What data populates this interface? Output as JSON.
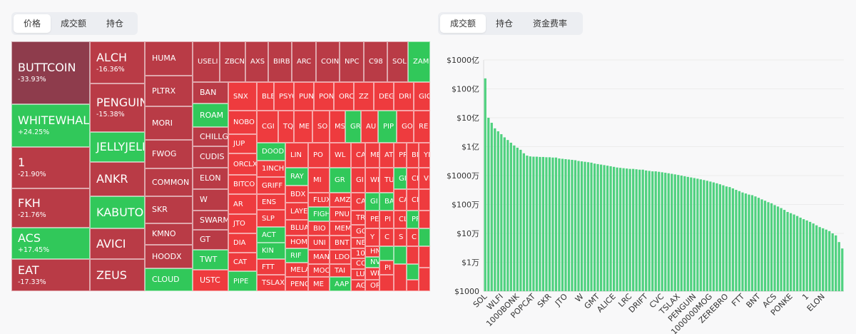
{
  "left_tabs": [
    "价格",
    "成交额",
    "持仓"
  ],
  "right_tabs": [
    "成交额",
    "持仓",
    "资金费率"
  ],
  "treemap": {
    "tiles": [
      {
        "name": "BUTTCOIN",
        "change": "-33.93%",
        "color": "#8e3c4c"
      },
      {
        "name": "WHITEWHALE",
        "change": "+24.25%",
        "color": "#31c85a"
      },
      {
        "name": "1",
        "change": "-21.90%",
        "color": "#b93b46"
      },
      {
        "name": "FKH",
        "change": "-21.76%",
        "color": "#b93b46"
      },
      {
        "name": "ACS",
        "change": "+17.45%",
        "color": "#31c85a"
      },
      {
        "name": "EAT",
        "change": "-17.33%",
        "color": "#b93b46"
      },
      {
        "name": "ALCH",
        "change": "-16.36%",
        "color": "#b93b46"
      },
      {
        "name": "PENGUIN",
        "change": "-15.38%",
        "color": "#b93b46"
      },
      {
        "name": "JELLYJELLY",
        "color": "#31c85a"
      },
      {
        "name": "ANKR",
        "color": "#b93b46"
      },
      {
        "name": "KABUTO",
        "color": "#31c85a"
      },
      {
        "name": "AVICI",
        "color": "#b93b46"
      },
      {
        "name": "ZEUS",
        "color": "#b93b46"
      },
      {
        "name": "HUMA",
        "color": "#b93b46"
      },
      {
        "name": "PLTRX",
        "color": "#b93b46"
      },
      {
        "name": "MORI",
        "color": "#b93b46"
      },
      {
        "name": "FWOG",
        "color": "#b93b46"
      },
      {
        "name": "COMMON",
        "color": "#b93b46"
      },
      {
        "name": "SKR",
        "color": "#b93b46"
      },
      {
        "name": "KMNO",
        "color": "#b93b46"
      },
      {
        "name": "HOODX",
        "color": "#b93b46"
      },
      {
        "name": "CLOUD",
        "color": "#31c85a"
      },
      {
        "name": "USELI",
        "color": "#b93b46"
      },
      {
        "name": "ZBCN",
        "color": "#b93b46"
      },
      {
        "name": "AXS",
        "color": "#b93b46"
      },
      {
        "name": "BIRB",
        "color": "#b93b46"
      },
      {
        "name": "ARC",
        "color": "#b93b46"
      },
      {
        "name": "COIN",
        "color": "#b93b46"
      },
      {
        "name": "NPC",
        "color": "#b93b46"
      },
      {
        "name": "C98",
        "color": "#b93b46"
      },
      {
        "name": "SOL",
        "color": "#b93b46"
      },
      {
        "name": "ZAM",
        "color": "#31c85a"
      },
      {
        "name": "BAN",
        "color": "#b93b46"
      },
      {
        "name": "ROAM",
        "color": "#31c85a"
      },
      {
        "name": "CHILLGU",
        "color": "#b93b46"
      },
      {
        "name": "CUDIS",
        "color": "#b93b46"
      },
      {
        "name": "ELON",
        "color": "#b93b46"
      },
      {
        "name": "W",
        "color": "#b93b46"
      },
      {
        "name": "SWARMS",
        "color": "#b93b46"
      },
      {
        "name": "GT",
        "color": "#b93b46"
      },
      {
        "name": "TWT",
        "color": "#31c85a"
      },
      {
        "name": "USTC",
        "color": "#ee3b3e"
      },
      {
        "name": "SNX",
        "color": "#ee3b3e"
      },
      {
        "name": "NOBO",
        "color": "#ee3b3e"
      },
      {
        "name": "JUP",
        "color": "#ee3b3e"
      },
      {
        "name": "ORCLX",
        "color": "#ee3b3e"
      },
      {
        "name": "BITCO",
        "color": "#ee3b3e"
      },
      {
        "name": "AR",
        "color": "#ee3b3e"
      },
      {
        "name": "JTO",
        "color": "#ee3b3e"
      },
      {
        "name": "DIA",
        "color": "#ee3b3e"
      },
      {
        "name": "CAT",
        "color": "#ee3b3e"
      },
      {
        "name": "PIPE",
        "color": "#31c85a"
      },
      {
        "name": "BLES",
        "color": "#ee3b3e"
      },
      {
        "name": "PSYO",
        "color": "#ee3b3e"
      },
      {
        "name": "PUN",
        "color": "#ee3b3e"
      },
      {
        "name": "PON",
        "color": "#ee3b3e"
      },
      {
        "name": "ORC",
        "color": "#ee3b3e"
      },
      {
        "name": "ZZ",
        "color": "#ee3b3e"
      },
      {
        "name": "DEG",
        "color": "#ee3b3e"
      },
      {
        "name": "DRI",
        "color": "#ee3b3e"
      },
      {
        "name": "GIG",
        "color": "#ee3b3e"
      },
      {
        "name": "CGI",
        "color": "#ee3b3e"
      },
      {
        "name": "TQ",
        "color": "#ee3b3e"
      },
      {
        "name": "ME",
        "color": "#ee3b3e"
      },
      {
        "name": "SO",
        "color": "#ee3b3e"
      },
      {
        "name": "MS",
        "color": "#ee3b3e"
      },
      {
        "name": "GR",
        "color": "#31c85a"
      },
      {
        "name": "AU",
        "color": "#ee3b3e"
      },
      {
        "name": "PIP",
        "color": "#31c85a"
      },
      {
        "name": "GO",
        "color": "#ee3b3e"
      },
      {
        "name": "RE",
        "color": "#ee3b3e"
      },
      {
        "name": "DOOD",
        "color": "#31c85a"
      },
      {
        "name": "1INCH",
        "color": "#ee3b3e"
      },
      {
        "name": "GRIFF",
        "color": "#ee3b3e"
      },
      {
        "name": "ENS",
        "color": "#ee3b3e"
      },
      {
        "name": "SLP",
        "color": "#ee3b3e"
      },
      {
        "name": "ACT",
        "color": "#31c85a"
      },
      {
        "name": "KIN",
        "color": "#31c85a"
      },
      {
        "name": "FTT",
        "color": "#ee3b3e"
      },
      {
        "name": "TSLAX",
        "color": "#ee3b3e"
      },
      {
        "name": "LIN",
        "color": "#ee3b3e"
      },
      {
        "name": "RAY",
        "color": "#31c85a"
      },
      {
        "name": "BDX",
        "color": "#ee3b3e"
      },
      {
        "name": "LAYE",
        "color": "#ee3b3e"
      },
      {
        "name": "BLUA",
        "color": "#ee3b3e"
      },
      {
        "name": "HOM",
        "color": "#ee3b3e"
      },
      {
        "name": "RIF",
        "color": "#31c85a"
      },
      {
        "name": "MELA",
        "color": "#ee3b3e"
      },
      {
        "name": "PENG",
        "color": "#ee3b3e"
      },
      {
        "name": "PO",
        "color": "#ee3b3e"
      },
      {
        "name": "MI",
        "color": "#ee3b3e"
      },
      {
        "name": "FLUX",
        "color": "#ee3b3e"
      },
      {
        "name": "FIGH",
        "color": "#31c85a"
      },
      {
        "name": "BIO",
        "color": "#ee3b3e"
      },
      {
        "name": "UNI",
        "color": "#ee3b3e"
      },
      {
        "name": "MAN",
        "color": "#ee3b3e"
      },
      {
        "name": "MOO",
        "color": "#ee3b3e"
      },
      {
        "name": "ME",
        "color": "#ee3b3e"
      },
      {
        "name": "WL",
        "color": "#ee3b3e"
      },
      {
        "name": "GR",
        "color": "#31c85a"
      },
      {
        "name": "AMZ",
        "color": "#ee3b3e"
      },
      {
        "name": "PNU",
        "color": "#ee3b3e"
      },
      {
        "name": "MEM",
        "color": "#ee3b3e"
      },
      {
        "name": "BNT",
        "color": "#ee3b3e"
      },
      {
        "name": "LDO",
        "color": "#ee3b3e"
      },
      {
        "name": "TAI",
        "color": "#ee3b3e"
      },
      {
        "name": "AAP",
        "color": "#31c85a"
      },
      {
        "name": "CA",
        "color": "#ee3b3e"
      },
      {
        "name": "GI",
        "color": "#ee3b3e"
      },
      {
        "name": "CA",
        "color": "#ee3b3e"
      },
      {
        "name": "TRU",
        "color": "#ee3b3e"
      },
      {
        "name": "GOA",
        "color": "#ee3b3e"
      },
      {
        "name": "NEI",
        "color": "#ee3b3e"
      },
      {
        "name": "1000",
        "color": "#ee3b3e"
      },
      {
        "name": "COM",
        "color": "#ee3b3e"
      },
      {
        "name": "LUN",
        "color": "#ee3b3e"
      },
      {
        "name": "AGI",
        "color": "#ee3b3e"
      },
      {
        "name": "ME",
        "color": "#ee3b3e"
      },
      {
        "name": "WI",
        "color": "#ee3b3e"
      },
      {
        "name": "GI",
        "color": "#31c85a"
      },
      {
        "name": "PE",
        "color": "#ee3b3e"
      },
      {
        "name": "Y",
        "color": "#ee3b3e"
      },
      {
        "name": "HN",
        "color": "#ee3b3e"
      },
      {
        "name": "NV",
        "color": "#31c85a"
      },
      {
        "name": "WI",
        "color": "#ee3b3e"
      },
      {
        "name": "OR",
        "color": "#ee3b3e"
      },
      {
        "name": "AT",
        "color": "#ee3b3e"
      },
      {
        "name": "TU",
        "color": "#ee3b3e"
      },
      {
        "name": "BA",
        "color": "#31c85a"
      },
      {
        "name": "PI",
        "color": "#ee3b3e"
      },
      {
        "name": "C",
        "color": "#ee3b3e"
      },
      {
        "name": null,
        "color": "#31c85a"
      },
      {
        "name": "PI",
        "color": "#ee3b3e"
      },
      {
        "name": null,
        "color": "#ee3b3e"
      },
      {
        "name": "PR",
        "color": "#ee3b3e"
      },
      {
        "name": "GI",
        "color": "#31c85a"
      },
      {
        "name": "CA",
        "color": "#ee3b3e"
      },
      {
        "name": "CL",
        "color": "#ee3b3e"
      },
      {
        "name": "S",
        "color": "#ee3b3e"
      },
      {
        "name": null,
        "color": "#31c85a"
      },
      {
        "name": null,
        "color": "#ee3b3e"
      },
      {
        "name": "BN",
        "color": "#ee3b3e"
      },
      {
        "name": "CI",
        "color": "#ee3b3e"
      },
      {
        "name": "CI",
        "color": "#ee3b3e"
      },
      {
        "name": "PR",
        "color": "#31c85a"
      },
      {
        "name": "C",
        "color": "#ee3b3e"
      },
      {
        "name": null,
        "color": "#ee3b3e"
      },
      {
        "name": null,
        "color": "#31c85a"
      },
      {
        "name": null,
        "color": "#ee3b3e"
      },
      {
        "name": "YF",
        "color": "#ee3b3e"
      },
      {
        "name": "VI",
        "color": "#ee3b3e"
      },
      {
        "name": null,
        "color": "#ee3b3e"
      },
      {
        "name": null,
        "color": "#ee3b3e"
      },
      {
        "name": null,
        "color": "#31c85a"
      },
      {
        "name": null,
        "color": "#ee3b3e"
      },
      {
        "name": null,
        "color": "#ee3b3e"
      }
    ]
  },
  "chart_data": {
    "type": "bar",
    "color": "#4fd17f",
    "log": true,
    "grid": true,
    "ylim": [
      1000,
      100000000000
    ],
    "yticks": [
      {
        "value": 1000,
        "label": "$1000"
      },
      {
        "value": 10000,
        "label": "$1万"
      },
      {
        "value": 100000,
        "label": "$10万"
      },
      {
        "value": 1000000,
        "label": "$100万"
      },
      {
        "value": 10000000,
        "label": "$1000万"
      },
      {
        "value": 100000000,
        "label": "$1亿"
      },
      {
        "value": 1000000000,
        "label": "$10亿"
      },
      {
        "value": 10000000000,
        "label": "$100亿"
      },
      {
        "value": 100000000000,
        "label": "$1000亿"
      }
    ],
    "categories": [
      "SOL",
      null,
      null,
      null,
      null,
      "WLFI",
      null,
      null,
      null,
      null,
      "1000BONK",
      null,
      null,
      null,
      null,
      "POPCAT",
      null,
      null,
      null,
      null,
      "SKR",
      null,
      null,
      null,
      null,
      "JTO",
      null,
      null,
      null,
      null,
      "W",
      null,
      null,
      null,
      null,
      "GMT",
      null,
      null,
      null,
      null,
      "ALICE",
      null,
      null,
      null,
      null,
      "LRC",
      null,
      null,
      null,
      null,
      "DRIFT",
      null,
      null,
      null,
      null,
      "CVC",
      null,
      null,
      null,
      null,
      "TSLAX",
      null,
      null,
      null,
      null,
      "PENGUIN",
      null,
      null,
      null,
      null,
      "1000000MOG",
      null,
      null,
      null,
      null,
      "ZEREBRO",
      null,
      null,
      null,
      null,
      "FTT",
      null,
      null,
      null,
      null,
      "BNT",
      null,
      null,
      null,
      null,
      "ACS",
      null,
      null,
      null,
      null,
      "PONKE",
      null,
      null,
      null,
      null,
      "1",
      null,
      null,
      null,
      null,
      "ELON",
      null,
      null,
      null,
      null,
      null,
      null
    ],
    "values": [
      23000000000,
      1000000000,
      670000000,
      430000000,
      340000000,
      270000000,
      210000000,
      170000000,
      137000000,
      110000000,
      92000000,
      78000000,
      59000000,
      49000000,
      46000000,
      45000000,
      45000000,
      44000000,
      44000000,
      43000000,
      43000000,
      42000000,
      42000000,
      39000000,
      38000000,
      37000000,
      36000000,
      35000000,
      34000000,
      32000000,
      31000000,
      30000000,
      29000000,
      28000000,
      26000000,
      25000000,
      24000000,
      23000000,
      22000000,
      21000000,
      20000000,
      19000000,
      18500000,
      18000000,
      17500000,
      17000000,
      17000000,
      16500000,
      16000000,
      16000000,
      15000000,
      14500000,
      14000000,
      14000000,
      13500000,
      13000000,
      12500000,
      12000000,
      11500000,
      11000000,
      10500000,
      10000000,
      9500000,
      9000000,
      8600000,
      8200000,
      7800000,
      7400000,
      7000000,
      6600000,
      6200000,
      5800000,
      5400000,
      5000000,
      4600000,
      4200000,
      4000000,
      3600000,
      3200000,
      2900000,
      2600000,
      2400000,
      2200000,
      2100000,
      1900000,
      1700000,
      1500000,
      1350000,
      1200000,
      1100000,
      950000,
      850000,
      750000,
      650000,
      550000,
      500000,
      450000,
      400000,
      350000,
      310000,
      280000,
      250000,
      220000,
      190000,
      165000,
      150000,
      135000,
      120000,
      100000,
      85000,
      50000,
      30000
    ]
  }
}
